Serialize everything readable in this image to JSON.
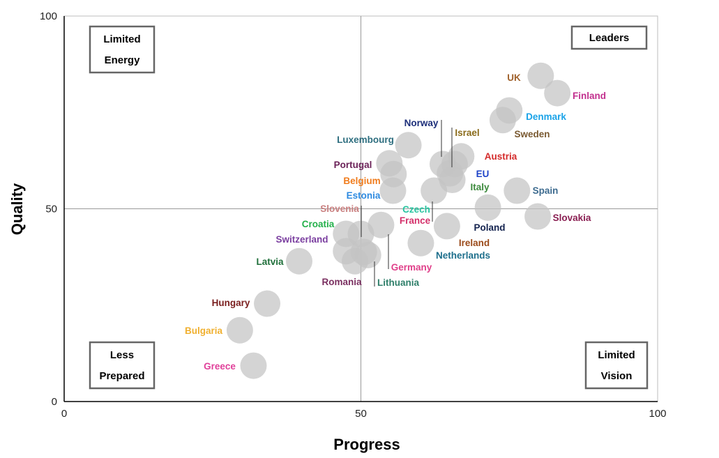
{
  "chart_data": {
    "type": "scatter",
    "xlabel": "Progress",
    "ylabel": "Quality",
    "xlim": [
      0,
      100
    ],
    "ylim": [
      0,
      100
    ],
    "x_ticks": [
      "0",
      "50",
      "100"
    ],
    "y_ticks": [
      "0",
      "50",
      "100"
    ],
    "reference_lines": {
      "x": 50,
      "y": 50
    },
    "grid": false,
    "marker_color": "#c4c4c4",
    "quadrants": [
      {
        "id": "limited-energy",
        "lines": [
          "Limited",
          "Energy"
        ]
      },
      {
        "id": "leaders",
        "lines": [
          "Leaders"
        ]
      },
      {
        "id": "less-prepared",
        "lines": [
          "Less",
          "Prepared"
        ]
      },
      {
        "id": "limited-vision",
        "lines": [
          "Limited",
          "Vision"
        ]
      }
    ],
    "points": [
      {
        "label": "UK",
        "x": 80.3,
        "y": 84.5,
        "color": "#a0622d"
      },
      {
        "label": "Finland",
        "x": 83.1,
        "y": 80.0,
        "color": "#c2308e"
      },
      {
        "label": "Denmark",
        "x": 75.0,
        "y": 75.5,
        "color": "#1aa3e8"
      },
      {
        "label": "Sweden",
        "x": 73.9,
        "y": 73.0,
        "color": "#7a5a32"
      },
      {
        "label": "Norway",
        "x": 58.0,
        "y": 66.5,
        "color": "#1d2f7a"
      },
      {
        "label": "Israel",
        "x": 66.9,
        "y": 63.6,
        "color": "#8a6b1a"
      },
      {
        "label": "Luxembourg",
        "x": 54.8,
        "y": 61.8,
        "color": "#2f6f80"
      },
      {
        "label": "Austria",
        "x": 63.8,
        "y": 61.6,
        "color": "#d42b2b"
      },
      {
        "label": "Portugal",
        "x": 55.5,
        "y": 59.0,
        "color": "#6b2258"
      },
      {
        "label": "EU",
        "x": 65.8,
        "y": 61.6,
        "color": "#1f44c8"
      },
      {
        "label": "Belgium",
        "x": 55.4,
        "y": 54.7,
        "color": "#f07c1d"
      },
      {
        "label": "Italy",
        "x": 65.4,
        "y": 57.5,
        "color": "#3d8a3d"
      },
      {
        "label": "Estonia",
        "x": 65.0,
        "y": 59.2,
        "color": "#2e8ae0"
      },
      {
        "label": "Spain",
        "x": 76.3,
        "y": 54.7,
        "color": "#3d6b8f"
      },
      {
        "label": "Czech",
        "x": 62.3,
        "y": 54.7,
        "color": "#28c4a0"
      },
      {
        "label": "Slovenia",
        "x": 71.4,
        "y": 50.3,
        "color": "#c98080"
      },
      {
        "label": "Slovakia",
        "x": 79.8,
        "y": 48.0,
        "color": "#8a1f52"
      },
      {
        "label": "France",
        "x": 53.4,
        "y": 45.8,
        "color": "#d4306a"
      },
      {
        "label": "Poland",
        "x": 64.5,
        "y": 45.5,
        "color": "#14234f"
      },
      {
        "label": "Croatia",
        "x": 47.5,
        "y": 43.5,
        "color": "#23b04a"
      },
      {
        "label": "Ireland",
        "x": 50.0,
        "y": 43.5,
        "color": "#9a4a1a"
      },
      {
        "label": "Netherlands",
        "x": 60.1,
        "y": 41.1,
        "color": "#1e6f8c"
      },
      {
        "label": "Switzerland",
        "x": 47.5,
        "y": 39.0,
        "color": "#7b3fa0"
      },
      {
        "label": "Germany",
        "x": 50.5,
        "y": 38.8,
        "color": "#e0408a"
      },
      {
        "label": "Latvia",
        "x": 39.6,
        "y": 36.4,
        "color": "#1f6f3a"
      },
      {
        "label": "Romania",
        "x": 49.0,
        "y": 36.4,
        "color": "#7a2f60"
      },
      {
        "label": "Lithuania",
        "x": 51.2,
        "y": 38.0,
        "color": "#2f7f6a"
      },
      {
        "label": "Hungary",
        "x": 34.2,
        "y": 25.4,
        "color": "#7a1f1f"
      },
      {
        "label": "Bulgaria",
        "x": 29.6,
        "y": 18.5,
        "color": "#f0b030"
      },
      {
        "label": "Greece",
        "x": 31.9,
        "y": 9.3,
        "color": "#e0409a"
      }
    ]
  }
}
